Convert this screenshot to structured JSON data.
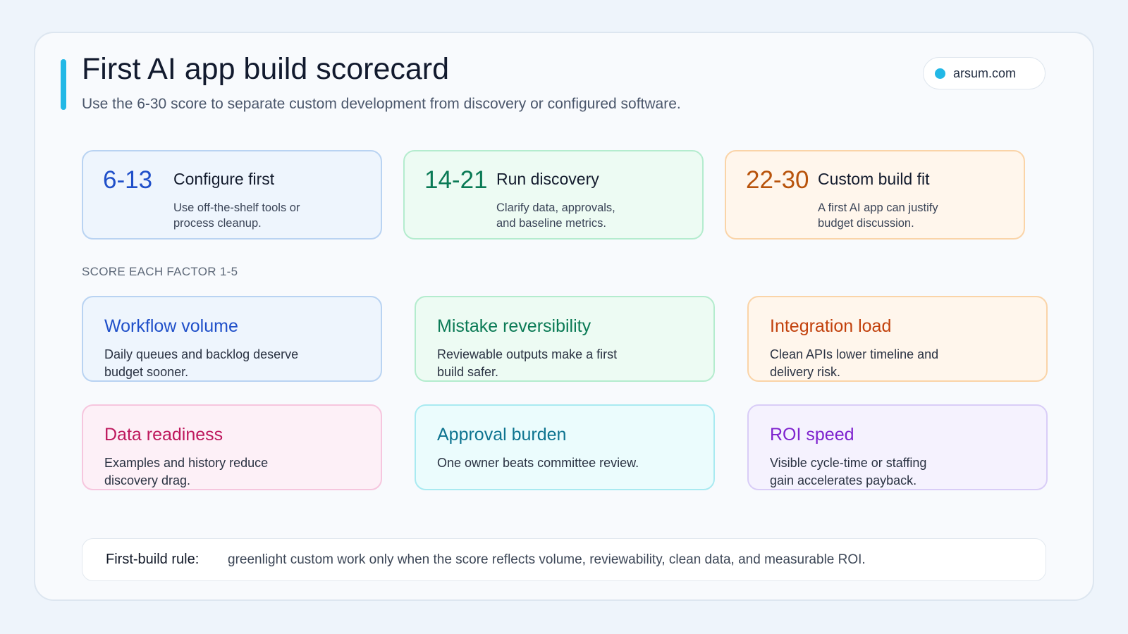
{
  "header": {
    "title": "First AI app build scorecard",
    "subtitle": "Use the 6-30 score to separate custom development from discovery or configured software.",
    "site": "arsum.com"
  },
  "bands": [
    {
      "range": "6-13",
      "title": "Configure first",
      "desc_line1": "Use off-the-shelf tools or",
      "desc_line2": "process cleanup.",
      "accent": "#1f4fc9",
      "bg": "#eef5fd",
      "border": "#b9d3f2"
    },
    {
      "range": "14-21",
      "title": "Run discovery",
      "desc_line1": "Clarify data, approvals,",
      "desc_line2": "and baseline metrics.",
      "accent": "#0a7a55",
      "bg": "#edfbf3",
      "border": "#b4ecce"
    },
    {
      "range": "22-30",
      "title": "Custom build fit",
      "desc_line1": "A first AI app can justify",
      "desc_line2": "budget discussion.",
      "accent": "#b8530b",
      "bg": "#fff6ec",
      "border": "#fad4a8"
    }
  ],
  "section_label": "SCORE EACH FACTOR 1-5",
  "factors": [
    {
      "title": "Workflow volume",
      "desc_line1": "Daily queues and backlog deserve",
      "desc_line2": "budget sooner.",
      "accent": "#1f4fc9",
      "bg": "#eef5fd",
      "border": "#b9d3f2"
    },
    {
      "title": "Mistake reversibility",
      "desc_line1": "Reviewable outputs make a first",
      "desc_line2": "build safer.",
      "accent": "#0a7a55",
      "bg": "#edfbf3",
      "border": "#b4ecce"
    },
    {
      "title": "Integration load",
      "desc_line1": "Clean APIs lower timeline and",
      "desc_line2": "delivery risk.",
      "accent": "#c2410c",
      "bg": "#fff6ec",
      "border": "#fad4a8"
    },
    {
      "title": "Data readiness",
      "desc_line1": "Examples and history reduce",
      "desc_line2": "discovery drag.",
      "accent": "#be185d",
      "bg": "#fdf0f7",
      "border": "#f6c6de"
    },
    {
      "title": "Approval burden",
      "desc_line1": "One owner beats committee review.",
      "desc_line2": "",
      "accent": "#0e7490",
      "bg": "#ebfcfd",
      "border": "#a9eaf1"
    },
    {
      "title": "ROI speed",
      "desc_line1": "Visible cycle-time or staffing",
      "desc_line2": "gain accelerates payback.",
      "accent": "#7e22ce",
      "bg": "#f5f2fe",
      "border": "#d9cdf7"
    }
  ],
  "rule": {
    "label": "First-build rule:",
    "text": "greenlight custom work only when the score reflects volume, reviewability, clean data, and measurable ROI."
  }
}
